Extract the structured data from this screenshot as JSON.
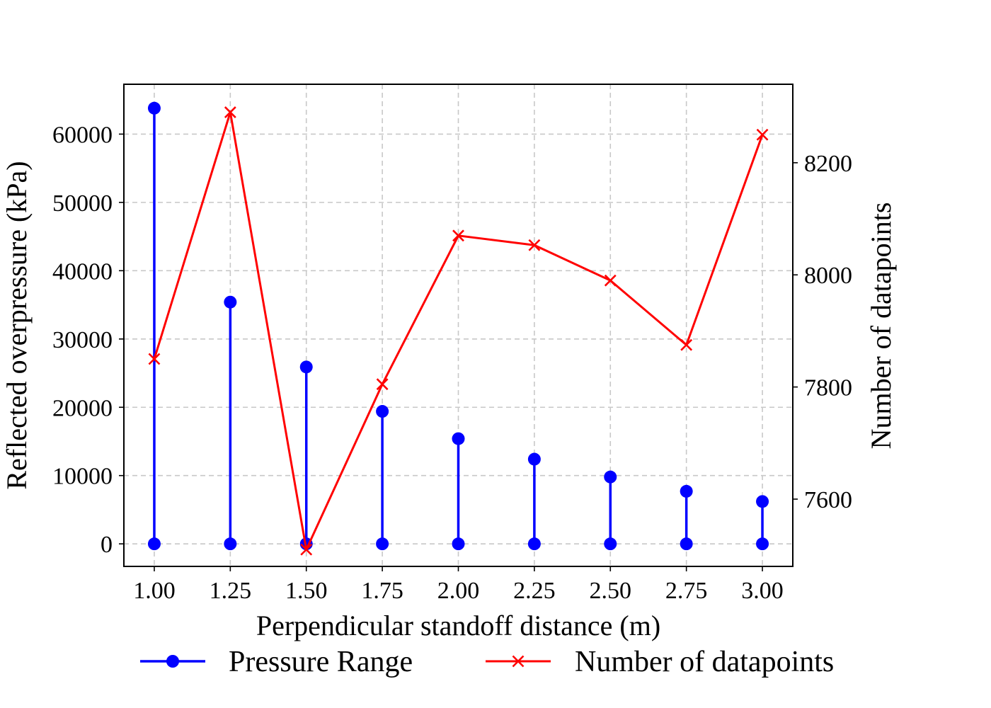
{
  "chart_data": {
    "type": "line",
    "x": [
      1.0,
      1.25,
      1.5,
      1.75,
      2.0,
      2.25,
      2.5,
      2.75,
      3.0
    ],
    "xtick_labels": [
      "1.00",
      "1.25",
      "1.50",
      "1.75",
      "2.00",
      "2.25",
      "2.50",
      "2.75",
      "3.00"
    ],
    "xlabel": "Perpendicular standoff distance (m)",
    "xlim": [
      0.9,
      3.1
    ],
    "left_axis": {
      "ylabel": "Reflected overpressure (kPa)",
      "ylim": [
        -3300,
        67300
      ],
      "ticks": [
        0,
        10000,
        20000,
        30000,
        40000,
        50000,
        60000
      ],
      "tick_labels": [
        "0",
        "10000",
        "20000",
        "30000",
        "40000",
        "50000",
        "60000"
      ]
    },
    "right_axis": {
      "ylabel": "Number of datapoints",
      "ylim": [
        7480,
        8340
      ],
      "ticks": [
        7600,
        7800,
        8000,
        8200
      ],
      "tick_labels": [
        "7600",
        "7800",
        "8000",
        "8200"
      ]
    },
    "series": [
      {
        "name": "Pressure Range",
        "axis": "left",
        "kind": "range",
        "color": "#0000ff",
        "marker": "circle",
        "low": [
          0,
          0,
          0,
          0,
          0,
          0,
          0,
          0,
          0
        ],
        "high": [
          63800,
          35400,
          25900,
          19400,
          15400,
          12400,
          9800,
          7700,
          6200
        ]
      },
      {
        "name": "Number of datapoints",
        "axis": "right",
        "kind": "line",
        "color": "#ff0000",
        "marker": "x",
        "values": [
          7850,
          8290,
          7510,
          7805,
          8070,
          8053,
          7990,
          7875,
          8250
        ]
      }
    ],
    "grid": true,
    "legend_position": "bottom-center"
  }
}
